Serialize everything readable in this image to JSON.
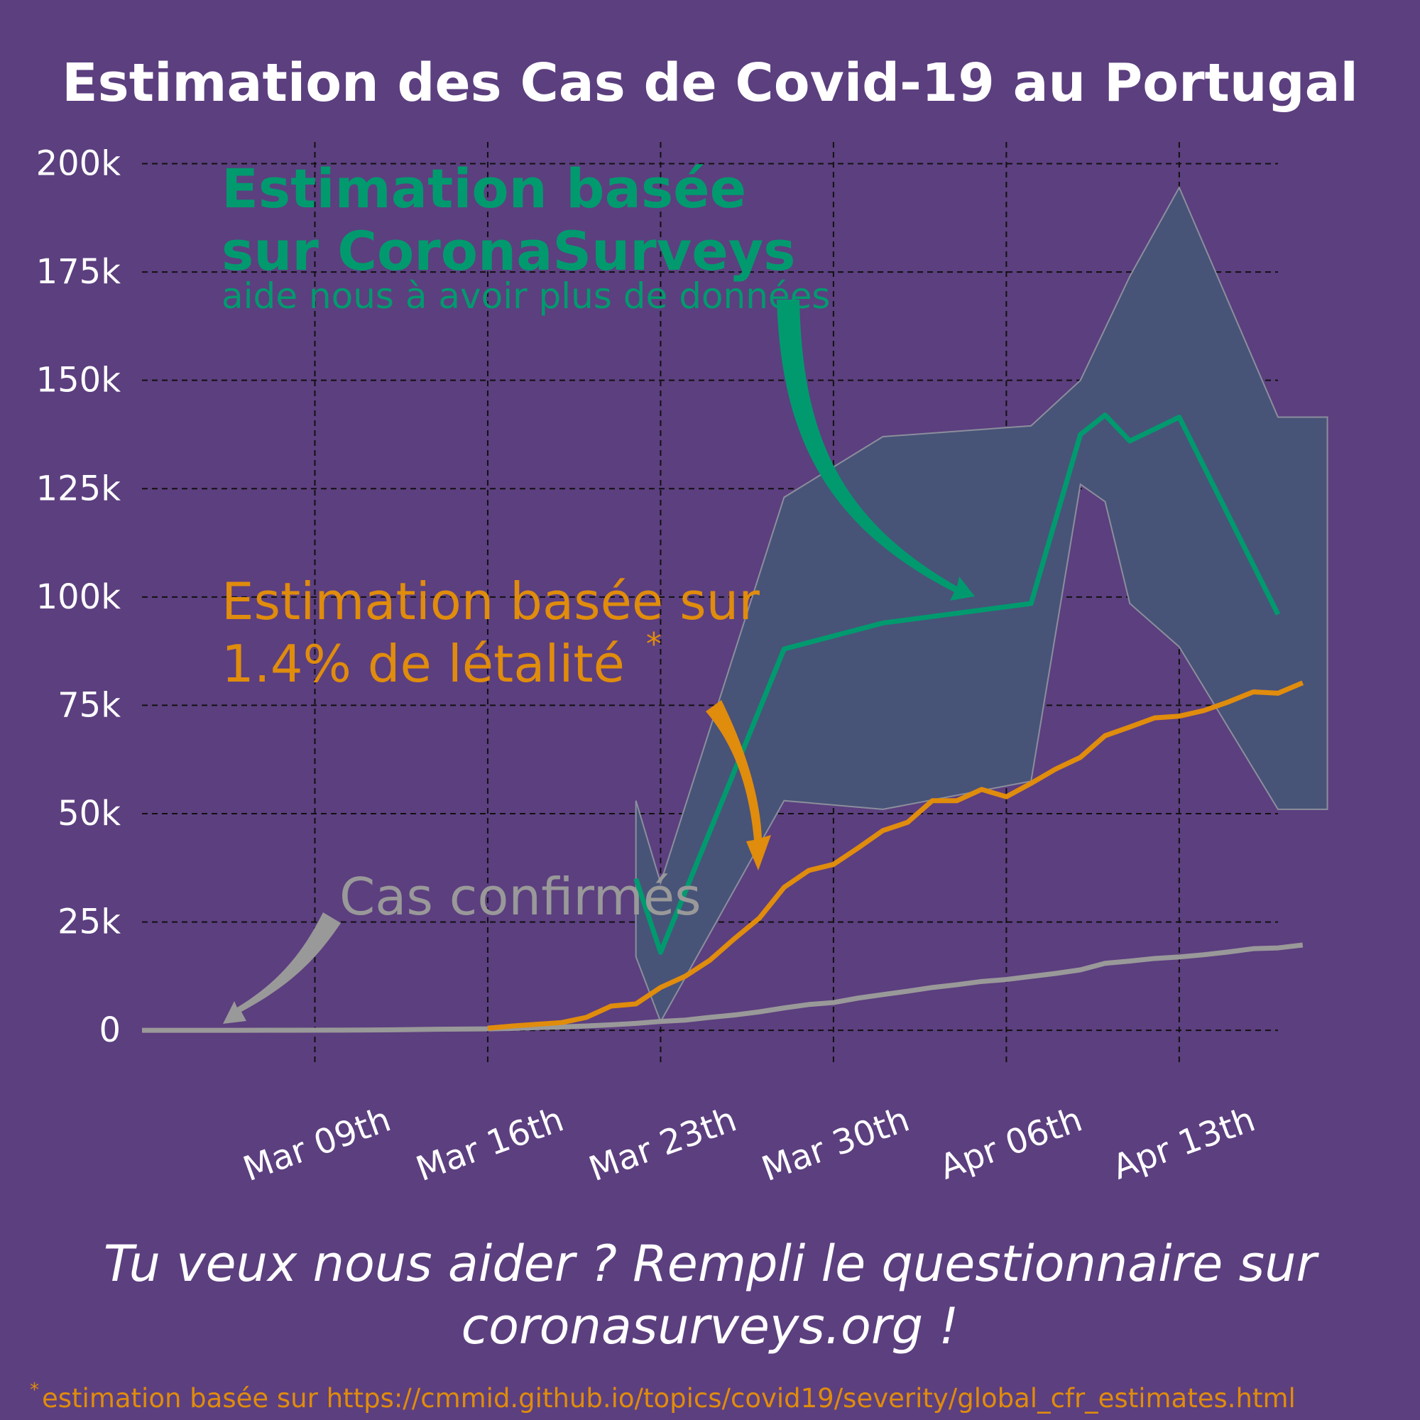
{
  "chart_data": {
    "type": "line",
    "title": "Estimation des Cas de Covid-19 au Portugal",
    "xlabel": "",
    "ylabel": "",
    "x_range": [
      "2020-03-02",
      "2020-04-17"
    ],
    "ylim": [
      -8000,
      205000
    ],
    "grid": true,
    "y_ticks": [
      {
        "value": 0,
        "label": "0"
      },
      {
        "value": 25000,
        "label": "25k"
      },
      {
        "value": 50000,
        "label": "50k"
      },
      {
        "value": 75000,
        "label": "75k"
      },
      {
        "value": 100000,
        "label": "100k"
      },
      {
        "value": 125000,
        "label": "125k"
      },
      {
        "value": 150000,
        "label": "150k"
      },
      {
        "value": 175000,
        "label": "175k"
      },
      {
        "value": 200000,
        "label": "200k"
      }
    ],
    "x_ticks": [
      {
        "value": "2020-03-09",
        "label": "Mar 09th"
      },
      {
        "value": "2020-03-16",
        "label": "Mar 16th"
      },
      {
        "value": "2020-03-23",
        "label": "Mar 23th"
      },
      {
        "value": "2020-03-30",
        "label": "Mar 30th"
      },
      {
        "value": "2020-04-06",
        "label": "Apr 06th"
      },
      {
        "value": "2020-04-13",
        "label": "Apr 13th"
      }
    ],
    "series": [
      {
        "name": "Cas confirmés",
        "color": "#999999",
        "points": [
          [
            "2020-03-02",
            0
          ],
          [
            "2020-03-04",
            5
          ],
          [
            "2020-03-06",
            13
          ],
          [
            "2020-03-08",
            30
          ],
          [
            "2020-03-10",
            41
          ],
          [
            "2020-03-12",
            112
          ],
          [
            "2020-03-14",
            245
          ],
          [
            "2020-03-16",
            331
          ],
          [
            "2020-03-17",
            448
          ],
          [
            "2020-03-18",
            642
          ],
          [
            "2020-03-19",
            785
          ],
          [
            "2020-03-20",
            1020
          ],
          [
            "2020-03-21",
            1280
          ],
          [
            "2020-03-22",
            1600
          ],
          [
            "2020-03-23",
            2060
          ],
          [
            "2020-03-24",
            2362
          ],
          [
            "2020-03-25",
            2995
          ],
          [
            "2020-03-26",
            3544
          ],
          [
            "2020-03-27",
            4268
          ],
          [
            "2020-03-28",
            5170
          ],
          [
            "2020-03-29",
            5962
          ],
          [
            "2020-03-30",
            6408
          ],
          [
            "2020-03-31",
            7443
          ],
          [
            "2020-04-01",
            8251
          ],
          [
            "2020-04-02",
            9034
          ],
          [
            "2020-04-03",
            9886
          ],
          [
            "2020-04-04",
            10524
          ],
          [
            "2020-04-05",
            11278
          ],
          [
            "2020-04-06",
            11730
          ],
          [
            "2020-04-07",
            12442
          ],
          [
            "2020-04-08",
            13141
          ],
          [
            "2020-04-09",
            13956
          ],
          [
            "2020-04-10",
            15472
          ],
          [
            "2020-04-11",
            15987
          ],
          [
            "2020-04-12",
            16585
          ],
          [
            "2020-04-13",
            16934
          ],
          [
            "2020-04-14",
            17448
          ],
          [
            "2020-04-15",
            18091
          ],
          [
            "2020-04-16",
            18841
          ],
          [
            "2020-04-17",
            19022
          ],
          [
            "2020-04-18",
            19685
          ]
        ]
      },
      {
        "name": "Estimation basée sur 1.4% de létalité",
        "color": "#e08c0c",
        "points": [
          [
            "2020-03-16",
            500
          ],
          [
            "2020-03-17",
            1000
          ],
          [
            "2020-03-18",
            1400
          ],
          [
            "2020-03-19",
            1800
          ],
          [
            "2020-03-20",
            3000
          ],
          [
            "2020-03-21",
            5600
          ],
          [
            "2020-03-22",
            6100
          ],
          [
            "2020-03-23",
            9900
          ],
          [
            "2020-03-24",
            12500
          ],
          [
            "2020-03-25",
            16200
          ],
          [
            "2020-03-26",
            21200
          ],
          [
            "2020-03-27",
            25900
          ],
          [
            "2020-03-28",
            33000
          ],
          [
            "2020-03-29",
            36900
          ],
          [
            "2020-03-30",
            38300
          ],
          [
            "2020-03-31",
            42100
          ],
          [
            "2020-04-01",
            46100
          ],
          [
            "2020-04-02",
            48000
          ],
          [
            "2020-04-03",
            53000
          ],
          [
            "2020-04-04",
            53000
          ],
          [
            "2020-04-05",
            55600
          ],
          [
            "2020-04-06",
            53900
          ],
          [
            "2020-04-07",
            57000
          ],
          [
            "2020-04-08",
            60300
          ],
          [
            "2020-04-09",
            63000
          ],
          [
            "2020-04-10",
            68000
          ],
          [
            "2020-04-11",
            70000
          ],
          [
            "2020-04-12",
            72100
          ],
          [
            "2020-04-13",
            72500
          ],
          [
            "2020-04-14",
            73800
          ],
          [
            "2020-04-15",
            75800
          ],
          [
            "2020-04-16",
            78100
          ],
          [
            "2020-04-17",
            77800
          ],
          [
            "2020-04-18",
            80200
          ]
        ]
      },
      {
        "name": "Estimation basée sur CoronaSurveys",
        "color": "#009a6e",
        "points": [
          [
            "2020-03-22",
            35000
          ],
          [
            "2020-03-23",
            18000
          ],
          [
            "2020-03-28",
            88000
          ],
          [
            "2020-04-01",
            94000
          ],
          [
            "2020-04-07",
            98500
          ],
          [
            "2020-04-09",
            137500
          ],
          [
            "2020-04-10",
            142000
          ],
          [
            "2020-04-11",
            136000
          ],
          [
            "2020-04-13",
            141500
          ],
          [
            "2020-04-17",
            96000
          ]
        ],
        "band": [
          [
            "2020-03-22",
            17000,
            53000
          ],
          [
            "2020-03-23",
            2000,
            34000
          ],
          [
            "2020-03-28",
            53000,
            123000
          ],
          [
            "2020-04-01",
            51000,
            137000
          ],
          [
            "2020-04-07",
            57500,
            139500
          ],
          [
            "2020-04-09",
            126000,
            150000
          ],
          [
            "2020-04-10",
            122000,
            162000
          ],
          [
            "2020-04-11",
            98500,
            174000
          ],
          [
            "2020-04-13",
            88500,
            194500
          ],
          [
            "2020-04-17",
            51000,
            141500
          ],
          [
            "2020-04-19",
            51000,
            141500
          ]
        ]
      }
    ],
    "annotations": {
      "corona_title_line1": "Estimation basée",
      "corona_title_line2": "sur CoronaSurveys",
      "corona_subtitle": "aide nous à avoir plus de données",
      "cfr_line1": "Estimation basée sur",
      "cfr_line2": "1.4% de létalité",
      "cfr_star": "*",
      "confirmed_label": "Cas confirmés"
    }
  },
  "footer": {
    "cta_line1": "Tu veux nous aider ? Rempli le questionnaire sur",
    "cta_line2": "coronasurveys.org !",
    "footnote_star": "*",
    "footnote_text": "estimation basée sur https://cmmid.github.io/topics/covid19/severity/global_cfr_estimates.html"
  },
  "colors": {
    "background": "#5c3f7f",
    "band_fill": "#485378",
    "band_stroke": "#8a8f9c",
    "text": "#ffffff",
    "corona": "#009a6e",
    "cfr": "#e08c0c",
    "confirmed": "#999999"
  }
}
